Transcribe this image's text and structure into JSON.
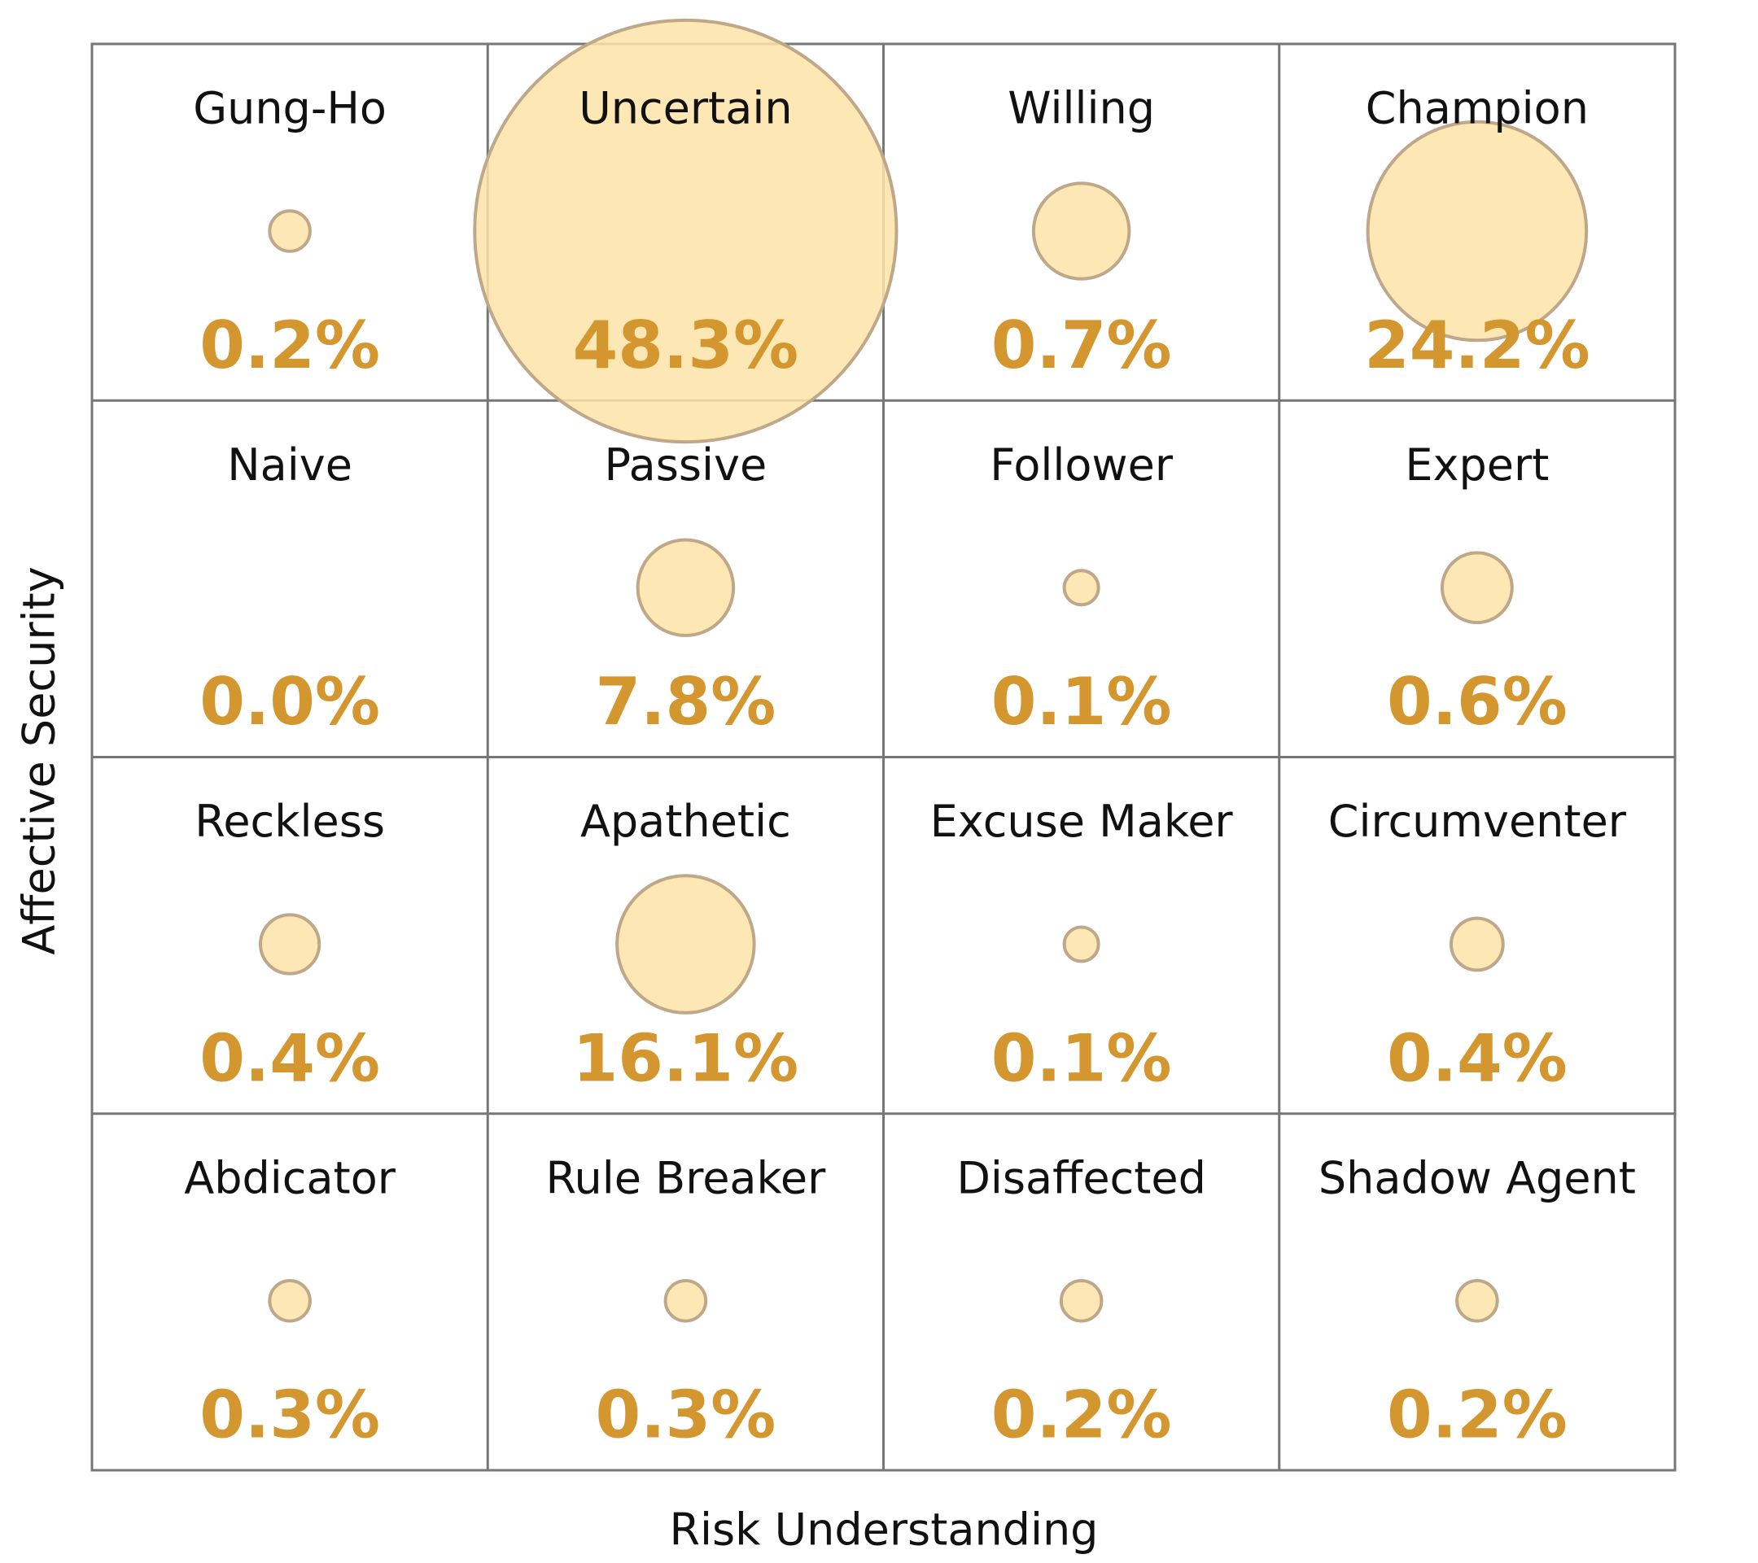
{
  "chart_data": {
    "type": "bubble-grid",
    "x_label": "Risk Understanding",
    "y_label": "Affective Security",
    "categories": [
      "Gung-Ho",
      "Uncertain",
      "Willing",
      "Champion",
      "Naive",
      "Passive",
      "Follower",
      "Expert",
      "Reckless",
      "Apathetic",
      "Excuse Maker",
      "Circumventer",
      "Abdicator",
      "Rule Breaker",
      "Disaffected",
      "Shadow Agent"
    ],
    "values": [
      0.2,
      48.3,
      0.7,
      24.2,
      0.0,
      7.8,
      0.1,
      0.6,
      0.4,
      16.1,
      0.1,
      0.4,
      0.3,
      0.3,
      0.2,
      0.2
    ],
    "value_labels": [
      "0.2%",
      "48.3%",
      "0.7%",
      "24.2%",
      "0.0%",
      "7.8%",
      "0.1%",
      "0.6%",
      "0.4%",
      "16.1%",
      "0.1%",
      "0.4%",
      "0.3%",
      "0.3%",
      "0.2%",
      "0.2%"
    ],
    "sizes": [
      3.2,
      350,
      18,
      94,
      0,
      18,
      2.3,
      9.6,
      6.8,
      37,
      2.3,
      5.3,
      3.2,
      3.2,
      3.2,
      3.2
    ],
    "color": "#fde3a7",
    "edge_color": "#bfa88a",
    "value_color": "#d4962e"
  }
}
